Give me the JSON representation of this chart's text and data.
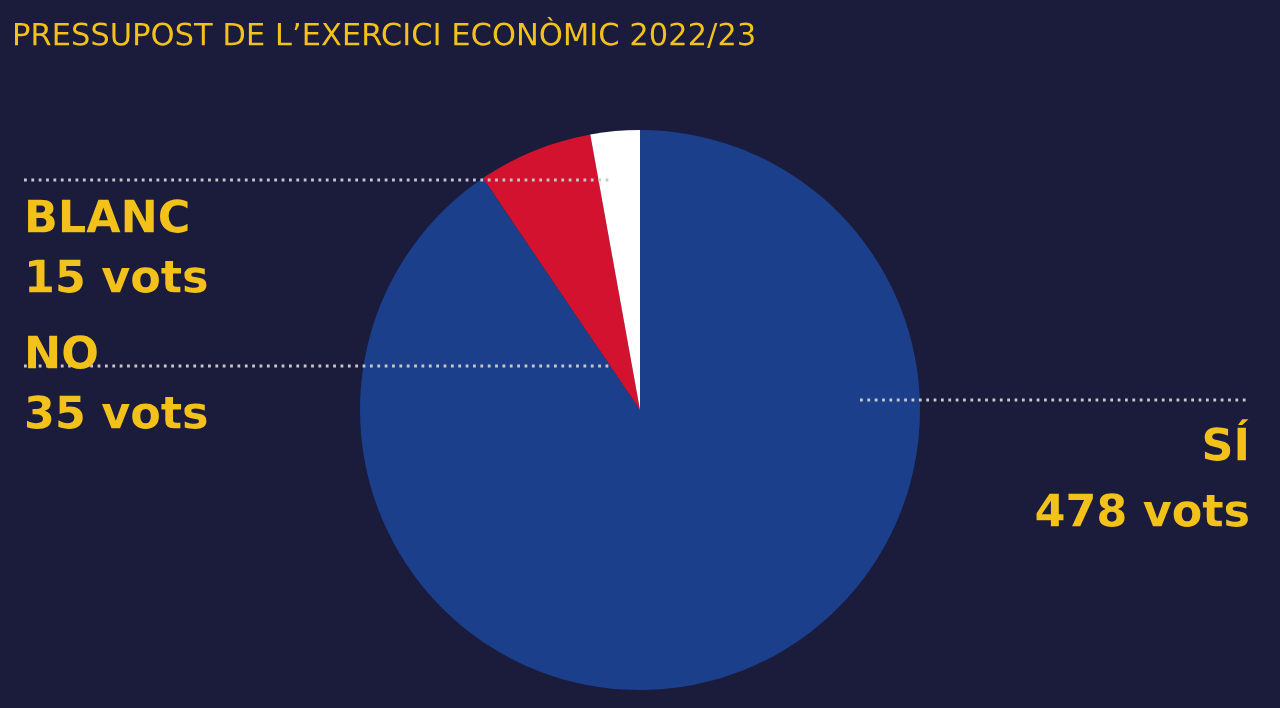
{
  "chart_data": {
    "type": "pie",
    "title": "PRESSUPOST DE L’EXERCICI ECONÒMIC 2022/23",
    "categories": [
      "SÍ",
      "NO",
      "BLANC"
    ],
    "values": [
      478,
      35,
      15
    ],
    "colors": [
      "#1c3f8c",
      "#d2122e",
      "#ffffff"
    ],
    "value_labels": [
      "478 vots",
      "35 vots",
      "15 vots"
    ],
    "legend": false
  }
}
